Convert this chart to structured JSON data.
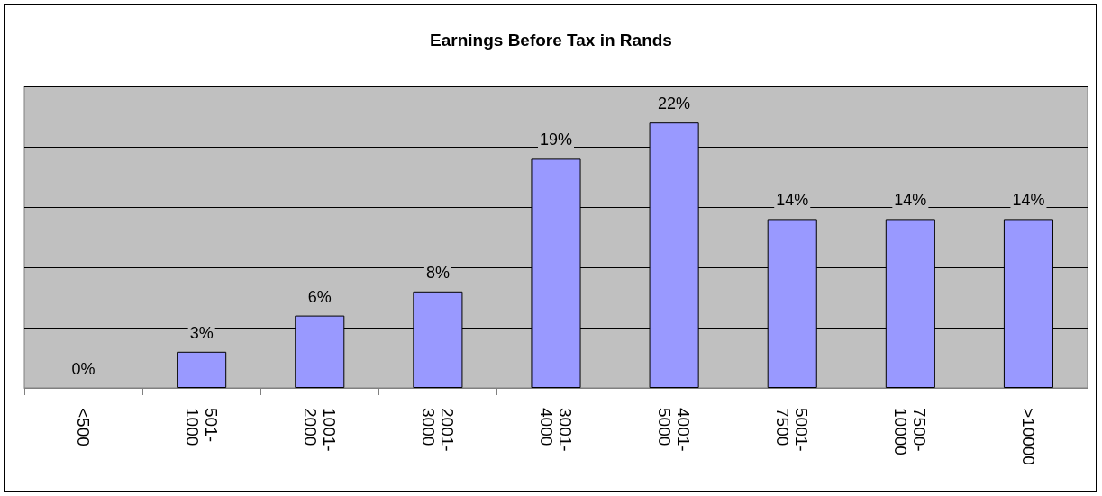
{
  "chart_data": {
    "type": "bar",
    "title": "Earnings Before Tax in Rands",
    "categories": [
      "<500",
      "501-1000",
      "1001-2000",
      "2001-3000",
      "3001-4000",
      "4001-5000",
      "5001-7500",
      "7500-10000",
      ">10000"
    ],
    "values": [
      0,
      3,
      6,
      8,
      19,
      22,
      14,
      14,
      14
    ],
    "value_labels": [
      "0%",
      "3%",
      "6%",
      "8%",
      "19%",
      "22%",
      "14%",
      "14%",
      "14%"
    ],
    "color": "#9999ff",
    "ylim": [
      0,
      25
    ],
    "yticks": [
      {
        "value": 0,
        "label": null
      },
      {
        "value": 5,
        "label": null
      },
      {
        "value": 10,
        "label": null
      },
      {
        "value": 15,
        "label": null
      },
      {
        "value": 20,
        "label": null
      },
      {
        "value": 25,
        "label": null
      }
    ],
    "tick_labels": "x",
    "grid": "y"
  }
}
